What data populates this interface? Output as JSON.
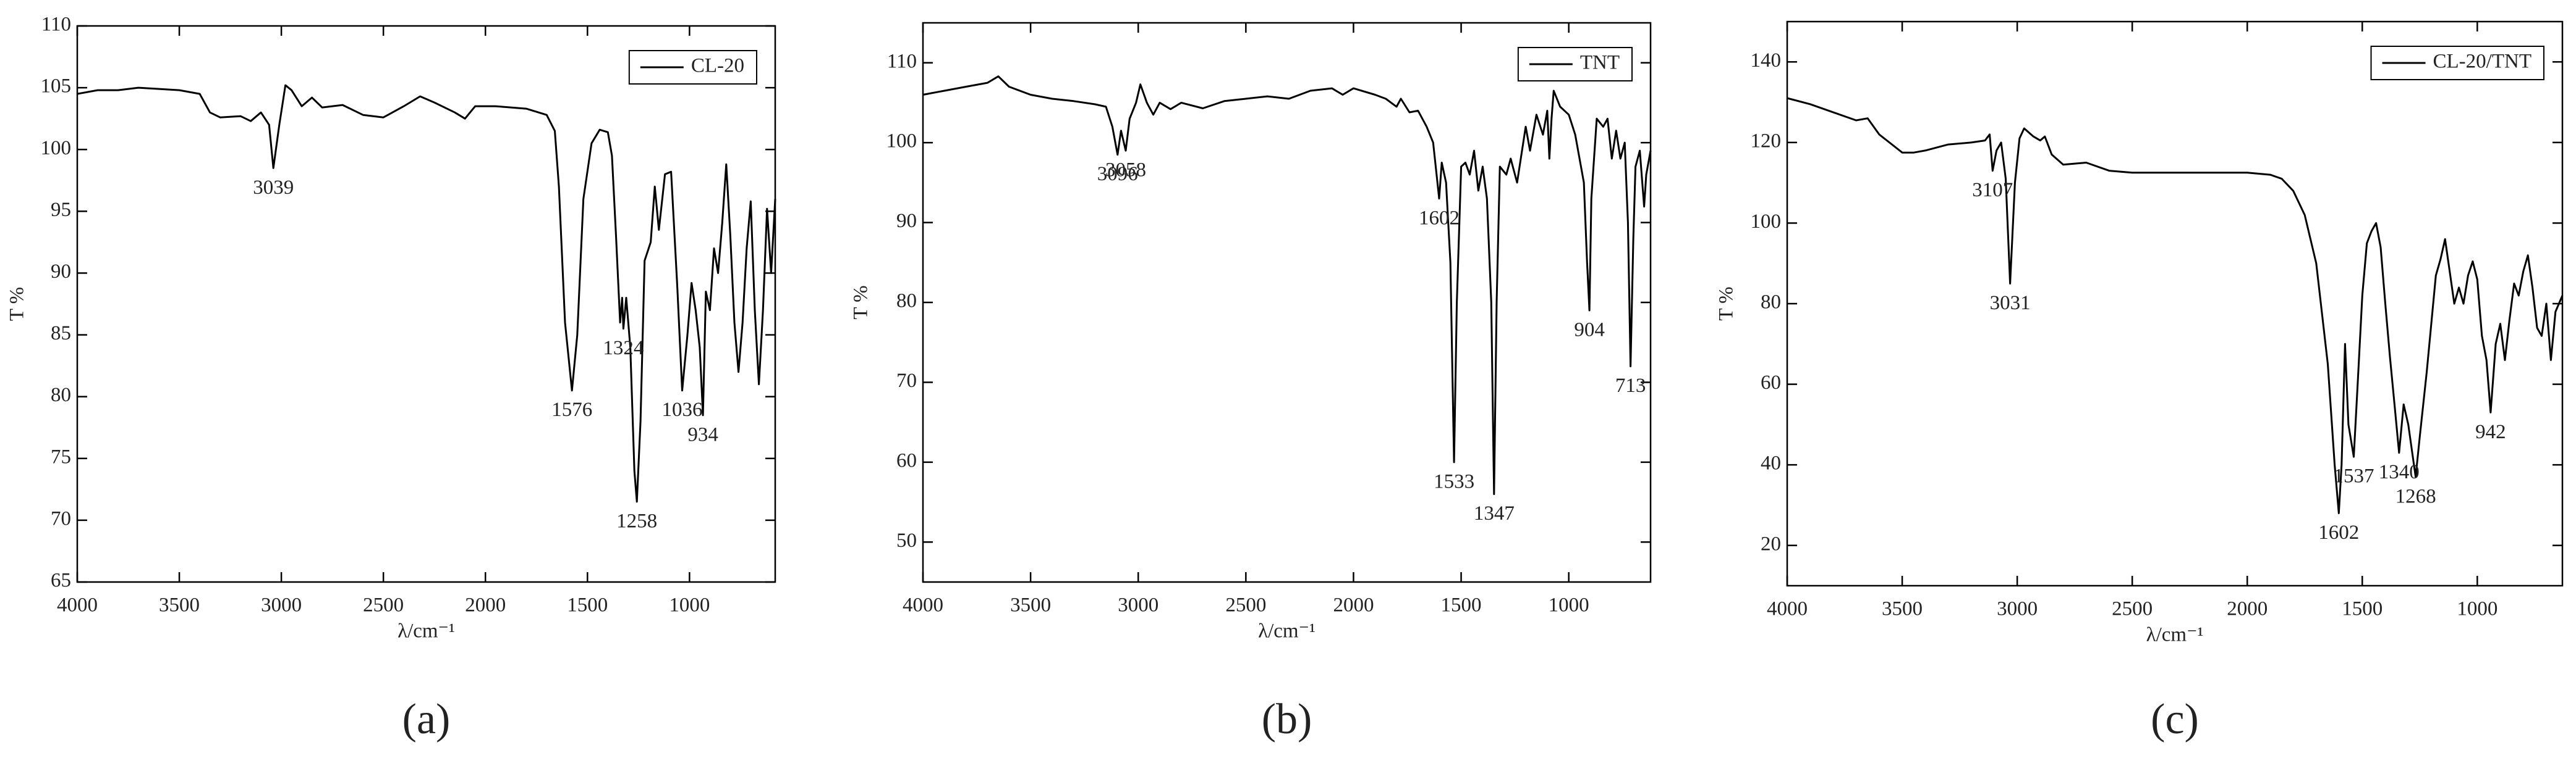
{
  "chart_data": [
    {
      "type": "line",
      "title": "(a)",
      "xlabel": "λ/cm⁻¹",
      "ylabel": "T %",
      "legend": "upper right",
      "x": [
        4000,
        3900,
        3800,
        3700,
        3600,
        3500,
        3400,
        3350,
        3300,
        3200,
        3150,
        3100,
        3060,
        3039,
        3010,
        2980,
        2950,
        2900,
        2850,
        2800,
        2700,
        2600,
        2500,
        2400,
        2320,
        2250,
        2150,
        2100,
        2050,
        1950,
        1800,
        1700,
        1660,
        1640,
        1610,
        1576,
        1550,
        1520,
        1480,
        1440,
        1400,
        1380,
        1360,
        1340,
        1330,
        1324,
        1310,
        1290,
        1270,
        1258,
        1240,
        1220,
        1190,
        1170,
        1150,
        1120,
        1090,
        1060,
        1036,
        1010,
        990,
        970,
        950,
        934,
        920,
        900,
        880,
        860,
        840,
        820,
        800,
        780,
        760,
        740,
        720,
        700,
        680,
        660,
        640,
        620,
        600,
        580
      ],
      "series": [
        {
          "name": "CL-20",
          "color": "#000000",
          "values": [
            104.5,
            104.8,
            104.8,
            105,
            104.9,
            104.8,
            104.5,
            103,
            102.6,
            102.7,
            102.3,
            103,
            102,
            98.5,
            102,
            105.2,
            104.8,
            103.5,
            104.2,
            103.4,
            103.6,
            102.8,
            102.6,
            103.5,
            104.3,
            103.8,
            103,
            102.5,
            103.5,
            103.5,
            103.3,
            102.8,
            101.5,
            97,
            86,
            80.5,
            85,
            96,
            100.5,
            101.6,
            101.4,
            99.5,
            93,
            86,
            88,
            85.5,
            88,
            84,
            74,
            71.5,
            78,
            91,
            92.5,
            97,
            93.5,
            98,
            98.2,
            89,
            80.5,
            85,
            89.2,
            87,
            84,
            78.5,
            88.5,
            87,
            92,
            90,
            94,
            98.8,
            93,
            86,
            82,
            86,
            92,
            95.8,
            87,
            81,
            87,
            95.2,
            90,
            96
          ]
        }
      ],
      "xlim": [
        4000,
        580
      ],
      "ylim": [
        65,
        110
      ],
      "xticks": [
        4000,
        3500,
        3000,
        2500,
        2000,
        1500,
        1000
      ],
      "yticks": [
        65,
        70,
        75,
        80,
        85,
        90,
        95,
        100,
        105,
        110
      ],
      "annotations": [
        {
          "x": 3039,
          "y": 98.5
        },
        {
          "x": 1576,
          "y": 80.5
        },
        {
          "x": 1324,
          "y": 85.5
        },
        {
          "x": 1258,
          "y": 71.5
        },
        {
          "x": 1036,
          "y": 80.5
        },
        {
          "x": 934,
          "y": 78.5
        }
      ]
    },
    {
      "type": "line",
      "title": "(b)",
      "xlabel": "λ/cm⁻¹",
      "ylabel": "T %",
      "legend": "upper right",
      "x": [
        4000,
        3900,
        3800,
        3700,
        3650,
        3600,
        3500,
        3400,
        3300,
        3200,
        3150,
        3120,
        3096,
        3080,
        3058,
        3040,
        3010,
        2990,
        2960,
        2930,
        2900,
        2850,
        2800,
        2700,
        2600,
        2500,
        2400,
        2300,
        2200,
        2100,
        2050,
        2000,
        1900,
        1850,
        1800,
        1780,
        1740,
        1700,
        1660,
        1630,
        1602,
        1590,
        1570,
        1550,
        1533,
        1520,
        1500,
        1480,
        1460,
        1440,
        1420,
        1400,
        1380,
        1360,
        1347,
        1335,
        1320,
        1290,
        1270,
        1240,
        1200,
        1180,
        1150,
        1120,
        1100,
        1090,
        1080,
        1070,
        1040,
        1000,
        970,
        950,
        930,
        915,
        904,
        895,
        870,
        840,
        820,
        800,
        780,
        760,
        740,
        725,
        713,
        700,
        690,
        670,
        650,
        640,
        620
      ],
      "series": [
        {
          "name": "TNT",
          "color": "#000000",
          "values": [
            106,
            106.5,
            107,
            107.5,
            108.3,
            107,
            106,
            105.5,
            105.2,
            104.8,
            104.5,
            102,
            98.5,
            101.5,
            99,
            103,
            105,
            107.3,
            105,
            103.5,
            105,
            104.2,
            105,
            104.3,
            105.2,
            105.5,
            105.8,
            105.5,
            106.5,
            106.8,
            106,
            106.8,
            106,
            105.5,
            104.5,
            105.5,
            103.8,
            104,
            102,
            100,
            93,
            97.5,
            95,
            85,
            60,
            80,
            97,
            97.5,
            96,
            99,
            94,
            97,
            93,
            80,
            56,
            80,
            97,
            96,
            98,
            95,
            102,
            99,
            103.5,
            101,
            104,
            98,
            103,
            106.5,
            104.5,
            103.5,
            101,
            98,
            95,
            85,
            79,
            93,
            103,
            102,
            103,
            98,
            101.5,
            98,
            100,
            90,
            72,
            88,
            97,
            99,
            92,
            96,
            99
          ]
        }
      ],
      "xlim": [
        4000,
        620
      ],
      "ylim": [
        45,
        115
      ],
      "xticks": [
        4000,
        3500,
        3000,
        2500,
        2000,
        1500,
        1000
      ],
      "yticks": [
        50,
        60,
        70,
        80,
        90,
        100,
        110
      ],
      "annotations": [
        {
          "x": 3096,
          "y": 98.5
        },
        {
          "x": 3058,
          "y": 99
        },
        {
          "x": 1602,
          "y": 93
        },
        {
          "x": 1533,
          "y": 60
        },
        {
          "x": 1347,
          "y": 56
        },
        {
          "x": 904,
          "y": 79
        },
        {
          "x": 713,
          "y": 72
        }
      ]
    },
    {
      "type": "line",
      "title": "(c)",
      "xlabel": "λ/cm⁻¹",
      "ylabel": "T %",
      "legend": "upper right",
      "x": [
        4000,
        3900,
        3800,
        3700,
        3650,
        3600,
        3500,
        3450,
        3400,
        3300,
        3200,
        3140,
        3120,
        3107,
        3090,
        3070,
        3050,
        3031,
        3010,
        2990,
        2970,
        2930,
        2900,
        2880,
        2850,
        2800,
        2700,
        2600,
        2500,
        2400,
        2300,
        2200,
        2100,
        2000,
        1900,
        1850,
        1800,
        1750,
        1700,
        1650,
        1620,
        1602,
        1590,
        1575,
        1560,
        1537,
        1520,
        1500,
        1480,
        1460,
        1440,
        1420,
        1400,
        1380,
        1360,
        1340,
        1320,
        1300,
        1268,
        1250,
        1220,
        1200,
        1180,
        1160,
        1140,
        1120,
        1100,
        1080,
        1060,
        1040,
        1020,
        1000,
        980,
        960,
        942,
        920,
        900,
        880,
        860,
        840,
        820,
        800,
        780,
        760,
        740,
        720,
        700,
        680,
        660,
        645,
        630
      ],
      "series": [
        {
          "name": "CL-20/TNT",
          "color": "#000000",
          "values": [
            131,
            129.5,
            127.5,
            125.5,
            126,
            122,
            117.5,
            117.5,
            118,
            119.5,
            120,
            120.5,
            122,
            113,
            118,
            120,
            111,
            85,
            110,
            121,
            123.5,
            121.5,
            120.5,
            121.5,
            117,
            114.5,
            115,
            113,
            112.5,
            112.5,
            112.5,
            112.5,
            112.5,
            112.5,
            112,
            111,
            108,
            102,
            90,
            65,
            40,
            28,
            40,
            70,
            50,
            42,
            60,
            82,
            95,
            98,
            100,
            94,
            80,
            67,
            55,
            43,
            55,
            50,
            37,
            47,
            63,
            75,
            87,
            91,
            96,
            88,
            80,
            84,
            80,
            87,
            90.5,
            86,
            72,
            66,
            53,
            70,
            75,
            66,
            76,
            85,
            82,
            88,
            92,
            84,
            74,
            72,
            80,
            66,
            78,
            80,
            82
          ]
        }
      ],
      "xlim": [
        4000,
        630
      ],
      "ylim": [
        10,
        150
      ],
      "xticks": [
        4000,
        3500,
        3000,
        2500,
        2000,
        1500,
        1000
      ],
      "yticks": [
        20,
        40,
        60,
        80,
        100,
        120,
        140
      ],
      "annotations": [
        {
          "x": 3107,
          "y": 113
        },
        {
          "x": 3031,
          "y": 85
        },
        {
          "x": 1602,
          "y": 28
        },
        {
          "x": 1537,
          "y": 42
        },
        {
          "x": 1340,
          "y": 43
        },
        {
          "x": 1268,
          "y": 37
        },
        {
          "x": 942,
          "y": 53
        }
      ]
    }
  ]
}
